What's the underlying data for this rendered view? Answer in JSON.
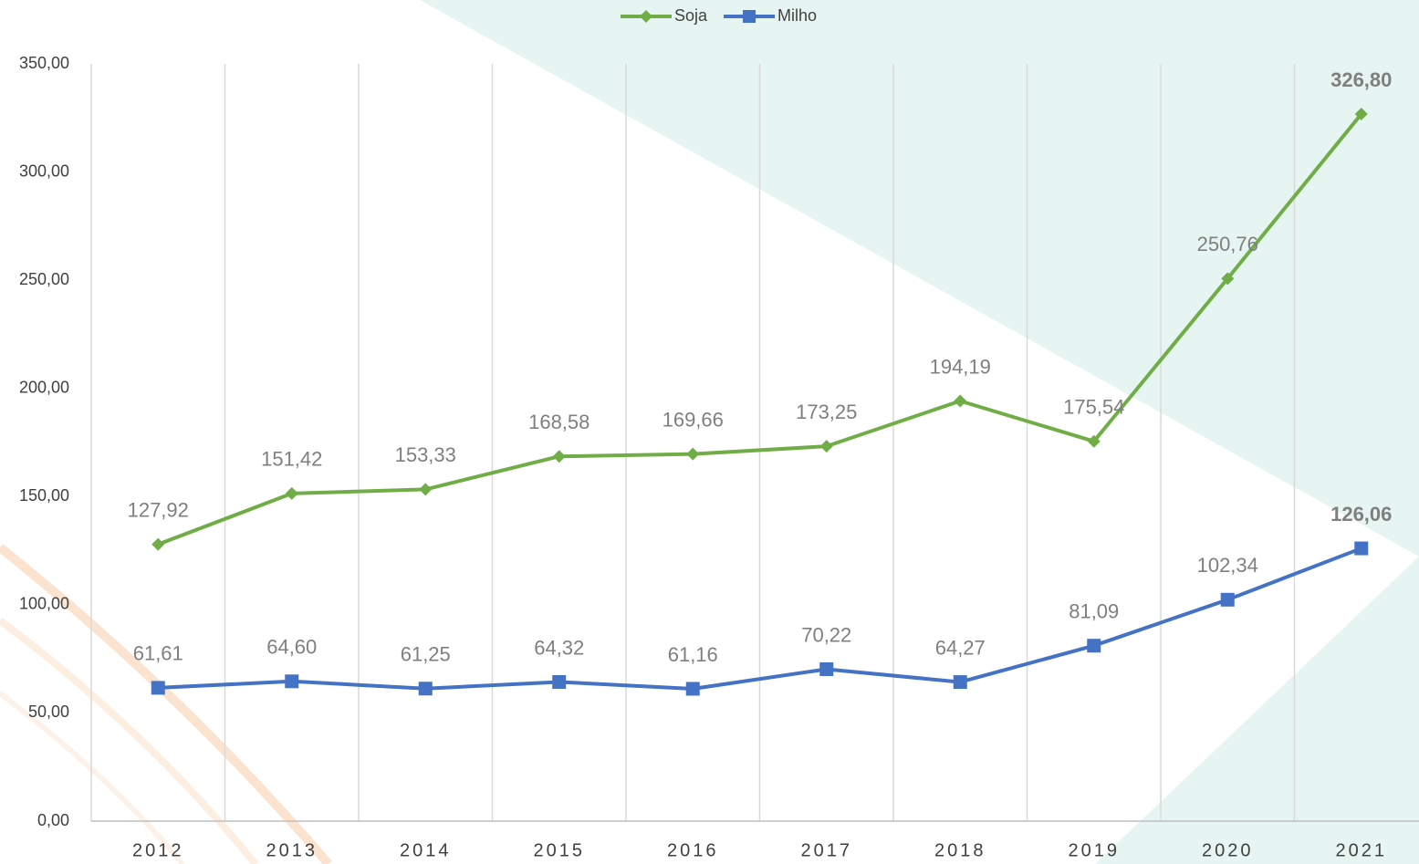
{
  "chart_data": {
    "type": "line",
    "categories": [
      "2012",
      "2013",
      "2014",
      "2015",
      "2016",
      "2017",
      "2018",
      "2019",
      "2020",
      "2021"
    ],
    "series": [
      {
        "name": "Soja",
        "color": "#70ad47",
        "marker": "diamond",
        "values": [
          127.92,
          151.42,
          153.33,
          168.58,
          169.66,
          173.25,
          194.19,
          175.54,
          250.76,
          326.8
        ],
        "value_labels": [
          "127,92",
          "151,42",
          "153,33",
          "168,58",
          "169,66",
          "173,25",
          "194,19",
          "175,54",
          "250,76",
          "326,80"
        ]
      },
      {
        "name": "Milho",
        "color": "#4472c4",
        "marker": "square",
        "values": [
          61.61,
          64.6,
          61.25,
          64.32,
          61.16,
          70.22,
          64.27,
          81.09,
          102.34,
          126.06
        ],
        "value_labels": [
          "61,61",
          "64,60",
          "61,25",
          "64,32",
          "61,16",
          "70,22",
          "64,27",
          "81,09",
          "102,34",
          "126,06"
        ]
      }
    ],
    "ylim": [
      0,
      350
    ],
    "yticks": [
      {
        "value": 0,
        "label": "0,00"
      },
      {
        "value": 50,
        "label": "50,00"
      },
      {
        "value": 100,
        "label": "100,00"
      },
      {
        "value": 150,
        "label": "150,00"
      },
      {
        "value": 200,
        "label": "200,00"
      },
      {
        "value": 250,
        "label": "250,00"
      },
      {
        "value": 300,
        "label": "300,00"
      },
      {
        "value": 350,
        "label": "350,00"
      }
    ],
    "grid": true,
    "legend": "top"
  }
}
